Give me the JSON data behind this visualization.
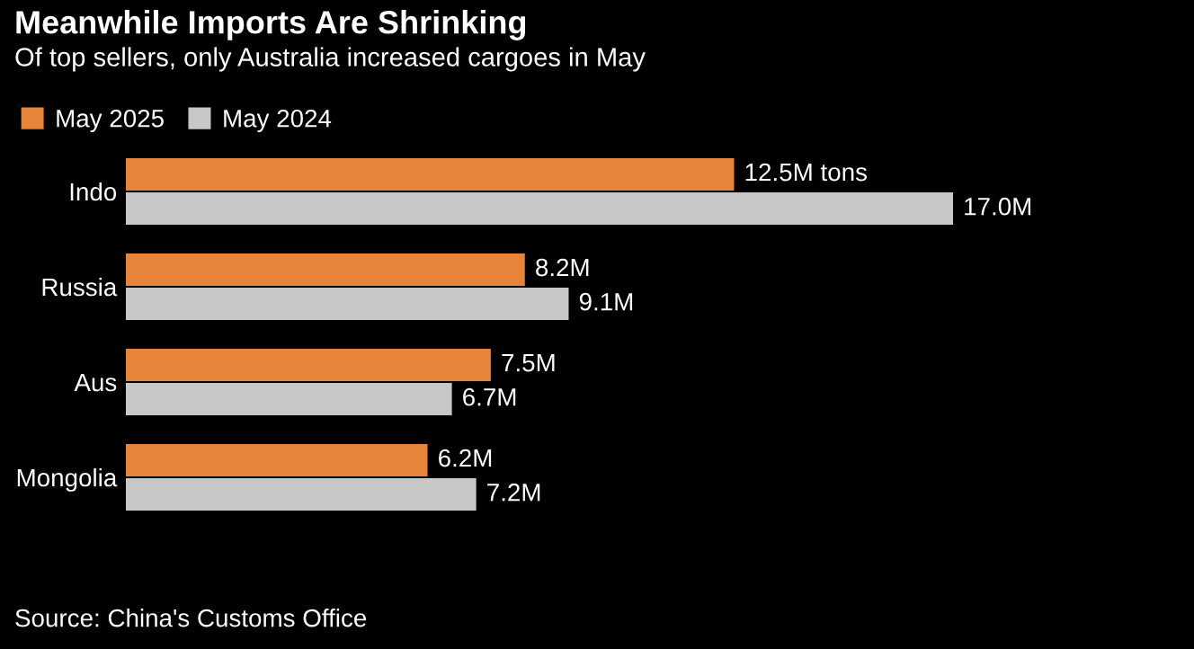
{
  "chart_data": {
    "type": "bar",
    "orientation": "horizontal",
    "title": "Meanwhile Imports Are Shrinking",
    "subtitle": "Of top sellers, only Australia increased cargoes in May",
    "categories": [
      "Indo",
      "Russia",
      "Aus",
      "Mongolia"
    ],
    "series": [
      {
        "name": "May 2025",
        "color": "#e8843a",
        "values": [
          12.5,
          8.2,
          7.5,
          6.2
        ],
        "value_labels": [
          "12.5M tons",
          "8.2M",
          "7.5M",
          "6.2M"
        ]
      },
      {
        "name": "May 2024",
        "color": "#c8c8c8",
        "values": [
          17.0,
          9.1,
          6.7,
          7.2
        ],
        "value_labels": [
          "17.0M",
          "9.1M",
          "6.7M",
          "7.2M"
        ]
      }
    ],
    "legend": "top left",
    "grid": false,
    "tick_labels": "y",
    "annotations": [
      "Source: China's Customs Office"
    ]
  }
}
